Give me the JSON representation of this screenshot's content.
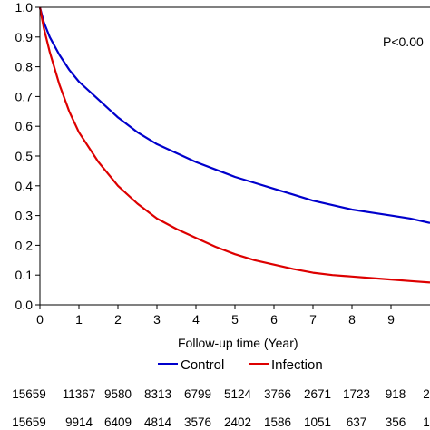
{
  "chart_data": {
    "type": "line",
    "xlabel": "Follow-up time (Year)",
    "annotation": "P<0.00",
    "xlim": [
      0,
      10
    ],
    "ylim": [
      0,
      1
    ],
    "x_ticks": [
      "0",
      "1",
      "2",
      "3",
      "4",
      "5",
      "6",
      "7",
      "8",
      "9"
    ],
    "y_ticks": [
      "0.0",
      "0.1",
      "0.2",
      "0.3",
      "0.4",
      "0.5",
      "0.6",
      "0.7",
      "0.8",
      "0.9",
      "1.0"
    ],
    "series": [
      {
        "name": "Control",
        "color": "#0000cc",
        "x": [
          0,
          0.1,
          0.25,
          0.5,
          0.75,
          1,
          1.5,
          2,
          2.5,
          3,
          3.5,
          4,
          4.5,
          5,
          5.5,
          6,
          6.5,
          7,
          7.5,
          8,
          8.5,
          9,
          9.5,
          10
        ],
        "y": [
          1.0,
          0.95,
          0.9,
          0.84,
          0.79,
          0.75,
          0.69,
          0.63,
          0.58,
          0.54,
          0.51,
          0.48,
          0.455,
          0.43,
          0.41,
          0.39,
          0.37,
          0.35,
          0.335,
          0.32,
          0.31,
          0.3,
          0.29,
          0.275
        ]
      },
      {
        "name": "Infection",
        "color": "#dd0000",
        "x": [
          0,
          0.1,
          0.25,
          0.5,
          0.75,
          1,
          1.5,
          2,
          2.5,
          3,
          3.5,
          4,
          4.5,
          5,
          5.5,
          6,
          6.5,
          7,
          7.5,
          8,
          8.5,
          9,
          9.5,
          10
        ],
        "y": [
          1.0,
          0.93,
          0.85,
          0.74,
          0.65,
          0.58,
          0.48,
          0.4,
          0.34,
          0.29,
          0.255,
          0.225,
          0.195,
          0.17,
          0.15,
          0.135,
          0.12,
          0.108,
          0.1,
          0.095,
          0.09,
          0.085,
          0.08,
          0.075
        ]
      }
    ],
    "legend": [
      "Control",
      "Infection"
    ],
    "legend_placement": "bottom"
  },
  "risk_table": {
    "rows": [
      [
        "15659",
        "11367",
        "9580",
        "8313",
        "6799",
        "5124",
        "3766",
        "2671",
        "1723",
        "918",
        "2"
      ],
      [
        "15659",
        "9914",
        "6409",
        "4814",
        "3576",
        "2402",
        "1586",
        "1051",
        "637",
        "356",
        "1"
      ]
    ]
  }
}
